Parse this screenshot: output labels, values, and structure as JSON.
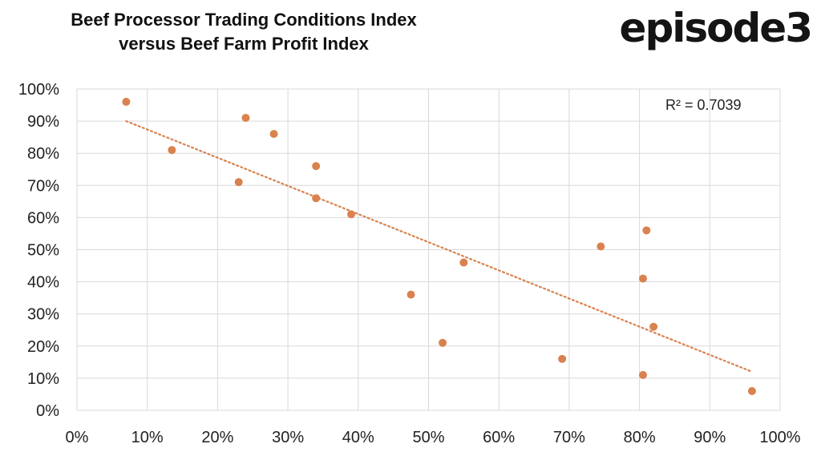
{
  "brand": "episode3",
  "chart_data": {
    "type": "scatter",
    "title_lines": [
      "Beef Processor Trading Conditions Index",
      "versus Beef Farm Profit Index"
    ],
    "xlabel": "",
    "ylabel": "",
    "xlim": [
      0,
      100
    ],
    "ylim": [
      0,
      100
    ],
    "x_ticks": [
      "0%",
      "10%",
      "20%",
      "30%",
      "40%",
      "50%",
      "60%",
      "70%",
      "80%",
      "90%",
      "100%"
    ],
    "y_ticks": [
      "0%",
      "10%",
      "20%",
      "30%",
      "40%",
      "50%",
      "60%",
      "70%",
      "80%",
      "90%",
      "100%"
    ],
    "grid": true,
    "point_color": "#d9824f",
    "trendline": {
      "type": "linear",
      "style": "dotted",
      "x_range": [
        7,
        96
      ],
      "y_start": 90,
      "y_end": 12
    },
    "annotation": "R² = 0.7039",
    "points": [
      {
        "x": 7,
        "y": 96
      },
      {
        "x": 13.5,
        "y": 81
      },
      {
        "x": 23,
        "y": 71
      },
      {
        "x": 24,
        "y": 91
      },
      {
        "x": 28,
        "y": 86
      },
      {
        "x": 34,
        "y": 66
      },
      {
        "x": 34,
        "y": 76
      },
      {
        "x": 39,
        "y": 61
      },
      {
        "x": 47.5,
        "y": 36
      },
      {
        "x": 52,
        "y": 21
      },
      {
        "x": 55,
        "y": 46
      },
      {
        "x": 69,
        "y": 16
      },
      {
        "x": 74.5,
        "y": 51
      },
      {
        "x": 80.5,
        "y": 11
      },
      {
        "x": 80.5,
        "y": 41
      },
      {
        "x": 81,
        "y": 56
      },
      {
        "x": 82,
        "y": 26
      },
      {
        "x": 96,
        "y": 6
      }
    ]
  }
}
